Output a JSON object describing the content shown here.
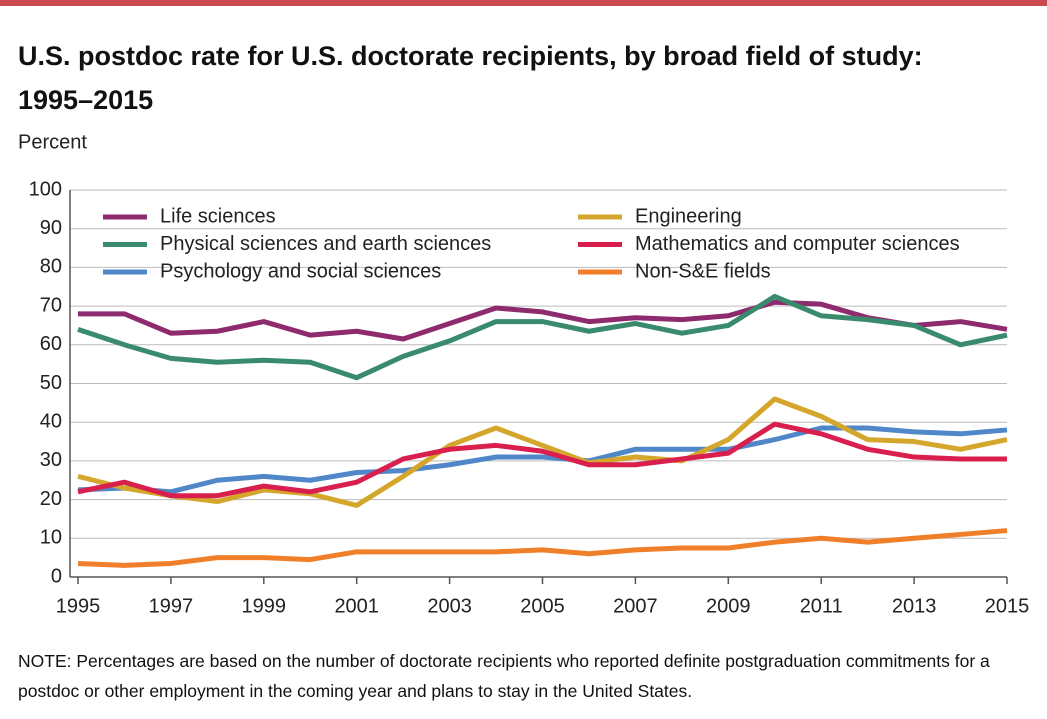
{
  "chart_data": {
    "type": "line",
    "title": "U.S. postdoc rate for U.S. doctorate recipients, by broad field of study: 1995–2015",
    "y_label": "Percent",
    "note": "NOTE: Percentages are based on the number of doctorate recipients who reported definite postgraduation commitments for a postdoc or other employment in the coming year and plans to stay in the United States.",
    "x": [
      1995,
      1996,
      1997,
      1998,
      1999,
      2000,
      2001,
      2002,
      2003,
      2004,
      2005,
      2006,
      2007,
      2008,
      2009,
      2010,
      2011,
      2012,
      2013,
      2014,
      2015
    ],
    "xlim": [
      1995,
      2015
    ],
    "xticks": [
      1995,
      1997,
      1999,
      2001,
      2003,
      2005,
      2007,
      2009,
      2011,
      2013,
      2015
    ],
    "ylim": [
      0,
      100
    ],
    "yticks": [
      0,
      10,
      20,
      30,
      40,
      50,
      60,
      70,
      80,
      90,
      100
    ],
    "grid": true,
    "series": [
      {
        "name": "Life sciences",
        "color": "#8e2a6e",
        "values": [
          68,
          68,
          63,
          63.5,
          66,
          62.5,
          63.5,
          61.5,
          65.5,
          69.5,
          68.5,
          66,
          67,
          66.5,
          67.5,
          71,
          70.5,
          67,
          65,
          66,
          64
        ]
      },
      {
        "name": "Physical sciences and earth sciences",
        "color": "#3a8a6e",
        "values": [
          64,
          60,
          56.5,
          55.5,
          56,
          55.5,
          51.5,
          57,
          61,
          66,
          66,
          63.5,
          65.5,
          63,
          65,
          72.5,
          67.5,
          66.5,
          65,
          60,
          62.5
        ]
      },
      {
        "name": "Psychology and social sciences",
        "color": "#4f87c9",
        "values": [
          22.5,
          23,
          22,
          25,
          26,
          25,
          27,
          27.5,
          29,
          31,
          31,
          30,
          33,
          33,
          33,
          35.5,
          38.5,
          38.5,
          37.5,
          37,
          38
        ]
      },
      {
        "name": "Engineering",
        "color": "#d4a72c",
        "values": [
          26,
          23,
          21,
          19.5,
          22.5,
          21.5,
          18.5,
          26,
          34,
          38.5,
          34,
          29.5,
          31,
          30,
          35.5,
          46,
          41.5,
          35.5,
          35,
          33,
          35.5
        ]
      },
      {
        "name": "Mathematics and computer sciences",
        "color": "#d81f4e",
        "values": [
          22,
          24.5,
          21,
          21,
          23.5,
          22,
          24.5,
          30.5,
          33,
          34,
          32.5,
          29,
          29,
          30.5,
          32,
          39.5,
          37,
          33,
          31,
          30.5,
          30.5
        ]
      },
      {
        "name": "Non-S&E fields",
        "color": "#f07f2a",
        "values": [
          3.5,
          3,
          3.5,
          5,
          5,
          4.5,
          6.5,
          6.5,
          6.5,
          6.5,
          7,
          6,
          7,
          7.5,
          7.5,
          9,
          10,
          9,
          10,
          11,
          12
        ]
      }
    ]
  }
}
